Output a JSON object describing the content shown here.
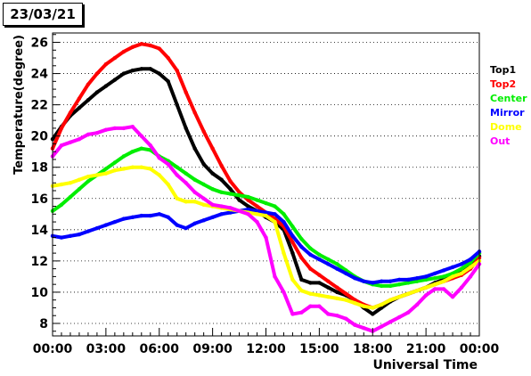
{
  "chart_data": {
    "type": "scatter",
    "title": "23/03/21",
    "xlabel": "Universal Time",
    "ylabel": "Temperature(degree)",
    "xlim": [
      0,
      24
    ],
    "ylim": [
      7.2,
      26.6
    ],
    "xticks": [
      "00:00",
      "03:00",
      "06:00",
      "09:00",
      "12:00",
      "15:00",
      "18:00",
      "21:00",
      "00:00"
    ],
    "yticks": [
      8,
      10,
      12,
      14,
      16,
      18,
      20,
      22,
      24,
      26
    ],
    "grid": "horizontal-dotted",
    "legend_position": "right",
    "series": [
      {
        "name": "Top1",
        "color": "#000000",
        "x": [
          0,
          0.5,
          1,
          1.5,
          2,
          2.5,
          3,
          3.5,
          4,
          4.5,
          5,
          5.5,
          6,
          6.5,
          7,
          7.5,
          8,
          8.5,
          9,
          9.5,
          10,
          10.5,
          11,
          11.5,
          12,
          12.5,
          13,
          13.5,
          14,
          14.5,
          15,
          15.5,
          16,
          16.5,
          17,
          17.5,
          18,
          18.5,
          19,
          19.5,
          20,
          20.5,
          21,
          21.5,
          22,
          22.5,
          23,
          23.5,
          24
        ],
        "y": [
          19.8,
          20.6,
          21.3,
          21.8,
          22.3,
          22.8,
          23.2,
          23.6,
          24.0,
          24.2,
          24.3,
          24.3,
          24.0,
          23.5,
          22.0,
          20.5,
          19.2,
          18.2,
          17.6,
          17.2,
          16.6,
          15.9,
          15.5,
          15.2,
          14.8,
          14.5,
          14.0,
          12.5,
          10.8,
          10.6,
          10.6,
          10.3,
          10.0,
          9.8,
          9.5,
          9.0,
          8.6,
          9.0,
          9.4,
          9.7,
          9.9,
          10.1,
          10.3,
          10.6,
          10.8,
          11.0,
          11.3,
          11.7,
          12.3
        ]
      },
      {
        "name": "Top2",
        "color": "#ff0000",
        "x": [
          0,
          0.5,
          1,
          1.5,
          2,
          2.5,
          3,
          3.5,
          4,
          4.5,
          5,
          5.5,
          6,
          6.5,
          7,
          7.5,
          8,
          8.5,
          9,
          9.5,
          10,
          10.5,
          11,
          11.5,
          12,
          12.5,
          13,
          13.5,
          14,
          14.5,
          15,
          15.5,
          16,
          16.5,
          17,
          17.5,
          18,
          18.5,
          19,
          19.5,
          20,
          20.5,
          21,
          21.5,
          22,
          22.5,
          23,
          23.5,
          24
        ],
        "y": [
          19.2,
          20.5,
          21.5,
          22.4,
          23.3,
          24.0,
          24.6,
          25.0,
          25.4,
          25.7,
          25.9,
          25.8,
          25.6,
          25.0,
          24.2,
          22.8,
          21.5,
          20.3,
          19.2,
          18.1,
          17.1,
          16.4,
          15.9,
          15.5,
          15.1,
          14.7,
          14.2,
          13.2,
          12.2,
          11.5,
          11.1,
          10.7,
          10.3,
          9.9,
          9.5,
          9.2,
          9.0,
          9.2,
          9.5,
          9.7,
          9.9,
          10.1,
          10.3,
          10.5,
          10.7,
          10.9,
          11.1,
          11.5,
          12.2
        ]
      },
      {
        "name": "Center",
        "color": "#00ee00",
        "x": [
          0,
          0.5,
          1,
          1.5,
          2,
          2.5,
          3,
          3.5,
          4,
          4.5,
          5,
          5.5,
          6,
          6.5,
          7,
          7.5,
          8,
          8.5,
          9,
          9.5,
          10,
          10.5,
          11,
          11.5,
          12,
          12.5,
          13,
          13.5,
          14,
          14.5,
          15,
          15.5,
          16,
          16.5,
          17,
          17.5,
          18,
          18.5,
          19,
          19.5,
          20,
          20.5,
          21,
          21.5,
          22,
          22.5,
          23,
          23.5,
          24
        ],
        "y": [
          15.2,
          15.6,
          16.1,
          16.6,
          17.1,
          17.5,
          17.9,
          18.3,
          18.7,
          19.0,
          19.2,
          19.1,
          18.7,
          18.4,
          18.0,
          17.6,
          17.2,
          16.9,
          16.6,
          16.4,
          16.3,
          16.2,
          16.1,
          15.9,
          15.7,
          15.5,
          15.0,
          14.2,
          13.4,
          12.8,
          12.4,
          12.1,
          11.8,
          11.4,
          11.0,
          10.7,
          10.5,
          10.4,
          10.4,
          10.5,
          10.6,
          10.7,
          10.8,
          10.9,
          11.0,
          11.2,
          11.5,
          11.9,
          12.5
        ]
      },
      {
        "name": "Mirror",
        "color": "#0000ff",
        "x": [
          0,
          0.5,
          1,
          1.5,
          2,
          2.5,
          3,
          3.5,
          4,
          4.5,
          5,
          5.5,
          6,
          6.5,
          7,
          7.5,
          8,
          8.5,
          9,
          9.5,
          10,
          10.5,
          11,
          11.5,
          12,
          12.5,
          13,
          13.5,
          14,
          14.5,
          15,
          15.5,
          16,
          16.5,
          17,
          17.5,
          18,
          18.5,
          19,
          19.5,
          20,
          20.5,
          21,
          21.5,
          22,
          22.5,
          23,
          23.5,
          24
        ],
        "y": [
          13.6,
          13.5,
          13.6,
          13.7,
          13.9,
          14.1,
          14.3,
          14.5,
          14.7,
          14.8,
          14.9,
          14.9,
          15.0,
          14.8,
          14.3,
          14.1,
          14.4,
          14.6,
          14.8,
          15.0,
          15.1,
          15.2,
          15.3,
          15.2,
          15.1,
          15.0,
          14.5,
          13.6,
          12.9,
          12.4,
          12.1,
          11.8,
          11.5,
          11.2,
          10.9,
          10.7,
          10.6,
          10.7,
          10.7,
          10.8,
          10.8,
          10.9,
          11.0,
          11.2,
          11.4,
          11.6,
          11.8,
          12.1,
          12.6
        ]
      },
      {
        "name": "Dome",
        "color": "#ffff00",
        "x": [
          0,
          0.5,
          1,
          1.5,
          2,
          2.5,
          3,
          3.5,
          4,
          4.5,
          5,
          5.5,
          6,
          6.5,
          7,
          7.5,
          8,
          8.5,
          9,
          9.5,
          10,
          10.5,
          11,
          11.5,
          12,
          12.5,
          13,
          13.5,
          14,
          14.5,
          15,
          15.5,
          16,
          16.5,
          17,
          17.5,
          18,
          18.5,
          19,
          19.5,
          20,
          20.5,
          21,
          21.5,
          22,
          22.5,
          23,
          23.5,
          24
        ],
        "y": [
          16.8,
          16.9,
          17.0,
          17.2,
          17.4,
          17.5,
          17.6,
          17.8,
          17.9,
          18.0,
          18.0,
          17.9,
          17.5,
          16.9,
          16.0,
          15.8,
          15.8,
          15.6,
          15.5,
          15.4,
          15.3,
          15.2,
          15.1,
          15.0,
          14.9,
          14.5,
          12.5,
          10.8,
          10.1,
          9.9,
          9.8,
          9.7,
          9.6,
          9.5,
          9.3,
          9.1,
          9.0,
          9.2,
          9.5,
          9.7,
          9.9,
          10.1,
          10.3,
          10.5,
          10.7,
          11.0,
          11.2,
          11.6,
          12.0
        ]
      },
      {
        "name": "Out",
        "color": "#ff00ff",
        "x": [
          0,
          0.5,
          1,
          1.5,
          2,
          2.5,
          3,
          3.5,
          4,
          4.5,
          5,
          5.5,
          6,
          6.5,
          7,
          7.5,
          8,
          8.5,
          9,
          9.5,
          10,
          10.5,
          11,
          11.5,
          12,
          12.5,
          13,
          13.5,
          14,
          14.5,
          15,
          15.5,
          16,
          16.5,
          17,
          17.5,
          18,
          18.5,
          19,
          19.5,
          20,
          20.5,
          21,
          21.5,
          22,
          22.5,
          23,
          23.5,
          24
        ],
        "y": [
          18.7,
          19.4,
          19.6,
          19.8,
          20.1,
          20.2,
          20.4,
          20.5,
          20.5,
          20.6,
          20.0,
          19.4,
          18.6,
          18.2,
          17.5,
          17.0,
          16.4,
          16.0,
          15.6,
          15.5,
          15.4,
          15.2,
          15.0,
          14.5,
          13.5,
          11.0,
          10.0,
          8.6,
          8.7,
          9.1,
          9.1,
          8.6,
          8.5,
          8.3,
          7.9,
          7.7,
          7.5,
          7.8,
          8.1,
          8.4,
          8.7,
          9.2,
          9.8,
          10.2,
          10.2,
          9.7,
          10.3,
          11.0,
          11.8
        ]
      }
    ]
  }
}
